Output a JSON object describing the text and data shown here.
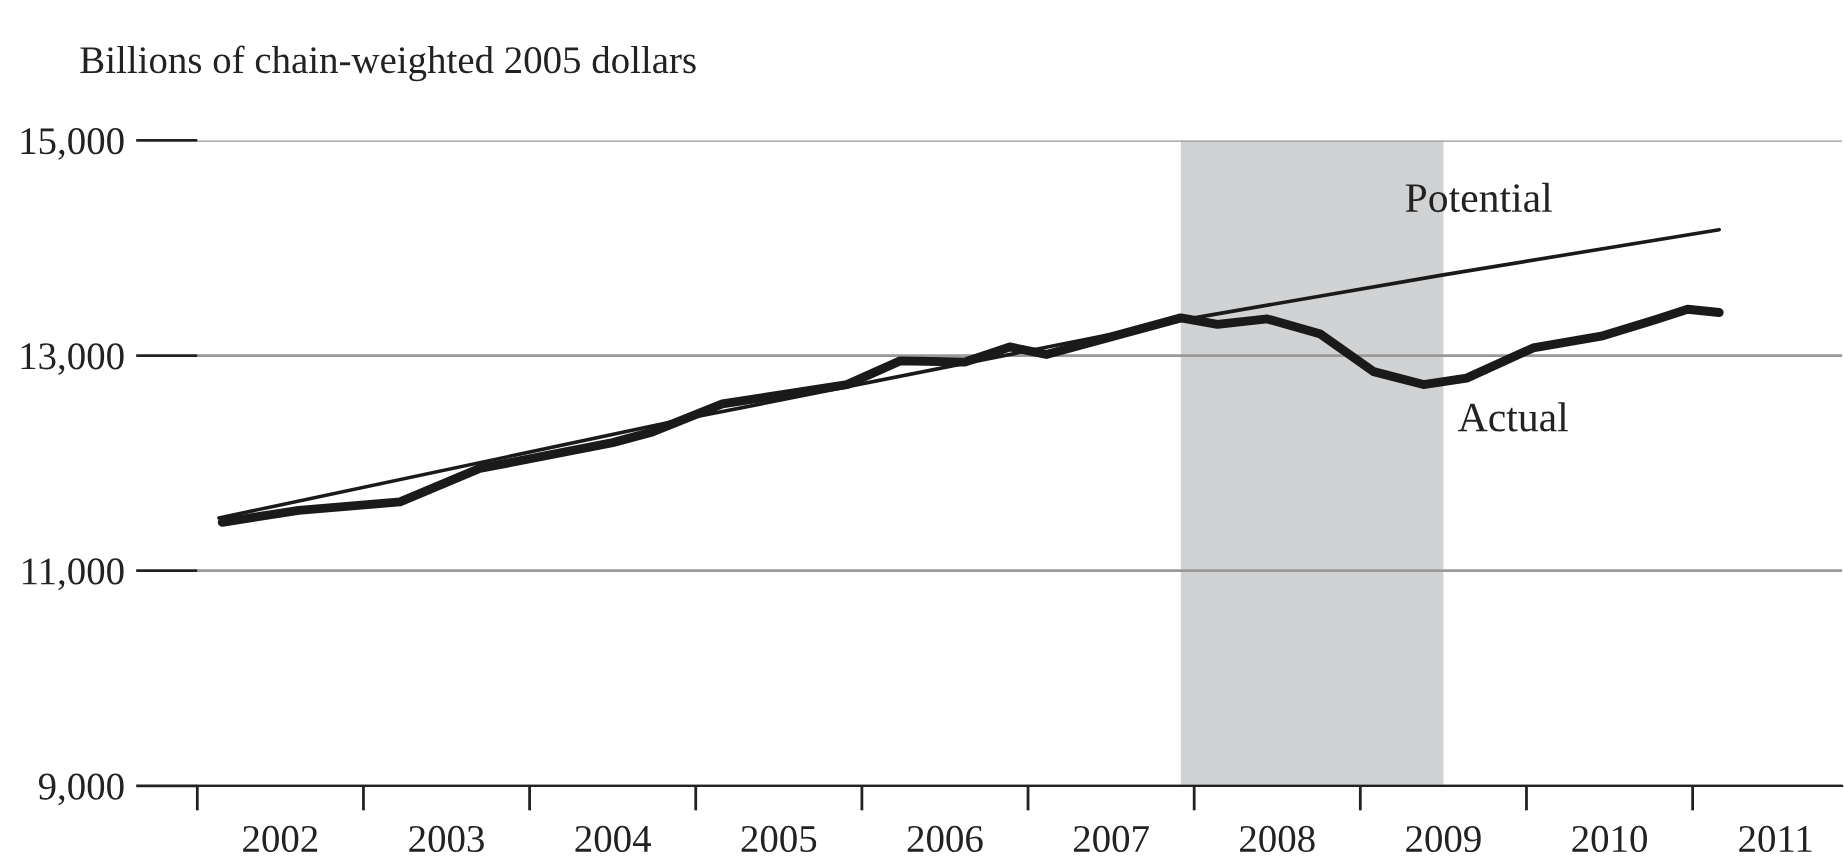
{
  "chart_data": {
    "type": "line",
    "ylabel": "Billions of chain-weighted 2005 dollars",
    "series": [
      {
        "color": "#1a1a1a",
        "x": [
          2002.13,
          2005.0,
          2008.0,
          2009.5,
          2011.16
        ],
        "values": [
          11490,
          12430,
          13350,
          13750,
          14170
        ]
      },
      {
        "color": "#1a1a1a",
        "x": [
          2002.15,
          2002.61,
          2003.22,
          2003.7,
          2004.5,
          2004.74,
          2005.16,
          2005.91,
          2006.23,
          2006.62,
          2006.89,
          2007.11,
          2007.92,
          2008.14,
          2008.44,
          2008.76,
          2009.08,
          2009.38,
          2009.64,
          2010.04,
          2010.45,
          2010.77,
          2010.97,
          2011.16
        ],
        "values": [
          11450,
          11560,
          11640,
          11950,
          12190,
          12290,
          12550,
          12730,
          12950,
          12940,
          13080,
          13010,
          13350,
          13290,
          13340,
          13200,
          12850,
          12730,
          12790,
          13070,
          13180,
          13330,
          13430,
          13400
        ]
      }
    ],
    "annotations": [
      "Potential",
      "Actual"
    ],
    "bands": [
      {
        "axis": "x",
        "from": 2007.92,
        "to": 2009.5,
        "color": "#d1d2d4"
      }
    ],
    "xlim": [
      2002,
      2011.9
    ],
    "xticks": [
      {
        "value": 2002,
        "label": null
      },
      {
        "value": 2002.5,
        "label": "2002"
      },
      {
        "value": 2003,
        "label": null
      },
      {
        "value": 2003.5,
        "label": "2003"
      },
      {
        "value": 2004,
        "label": null
      },
      {
        "value": 2004.5,
        "label": "2004"
      },
      {
        "value": 2005,
        "label": null
      },
      {
        "value": 2005.5,
        "label": "2005"
      },
      {
        "value": 2006,
        "label": null
      },
      {
        "value": 2006.5,
        "label": "2006"
      },
      {
        "value": 2007,
        "label": null
      },
      {
        "value": 2007.5,
        "label": "2007"
      },
      {
        "value": 2008,
        "label": null
      },
      {
        "value": 2008.5,
        "label": "2008"
      },
      {
        "value": 2009,
        "label": null
      },
      {
        "value": 2009.5,
        "label": "2009"
      },
      {
        "value": 2010,
        "label": null
      },
      {
        "value": 2010.5,
        "label": "2010"
      },
      {
        "value": 2011,
        "label": null
      },
      {
        "value": 2011.5,
        "label": "2011"
      }
    ],
    "ylim": [
      9000,
      15000
    ],
    "yticks": [
      {
        "value": 9000,
        "label": "9,000"
      },
      {
        "value": 11000,
        "label": "11,000"
      },
      {
        "value": 13000,
        "label": "13,000"
      },
      {
        "value": 15000,
        "label": "15,000"
      }
    ],
    "grid": "y",
    "legend": false
  }
}
